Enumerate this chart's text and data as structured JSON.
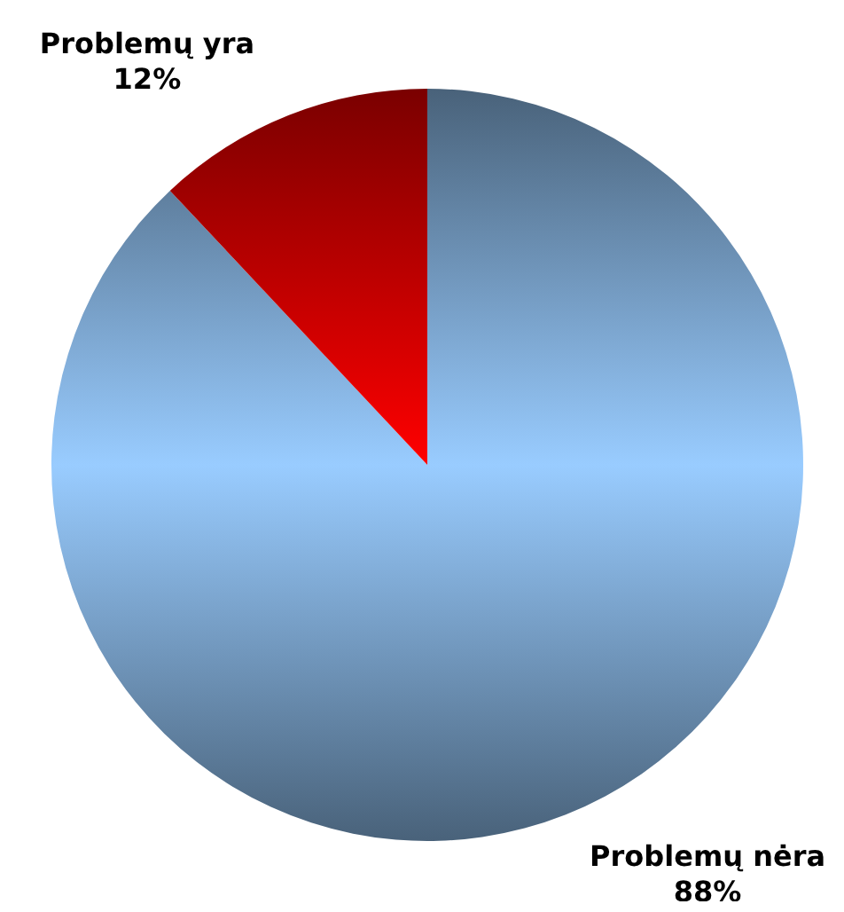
{
  "chart_data": {
    "type": "pie",
    "categories": [
      "Problemų nėra",
      "Problemų yra"
    ],
    "values": [
      88,
      12
    ],
    "colors": [
      "#99ccff",
      "#ff0000"
    ],
    "value_labels": [
      "88%",
      "12%"
    ]
  }
}
